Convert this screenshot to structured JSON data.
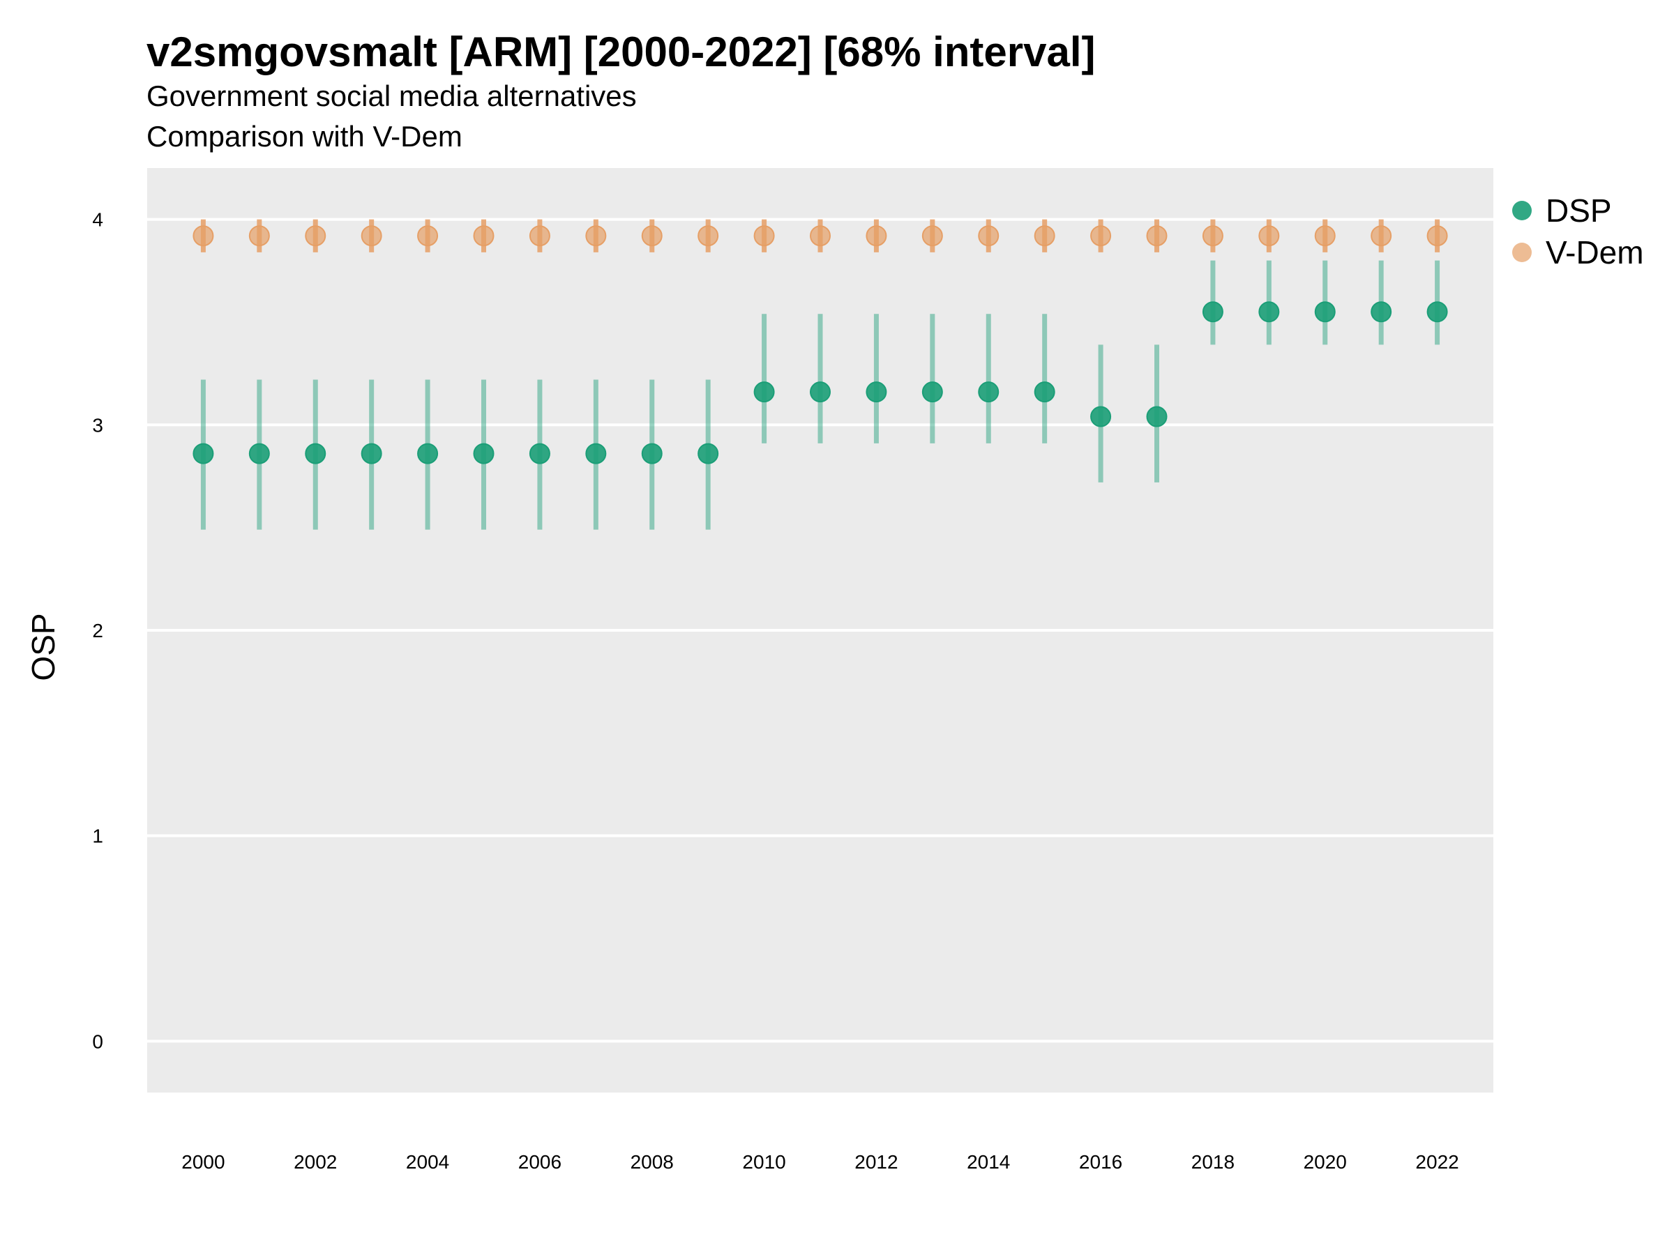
{
  "chart_data": {
    "type": "scatter",
    "title": "v2smgovsmalt [ARM] [2000-2022] [68% interval]",
    "subtitle": "Government social media alternatives",
    "subtitle2": "Comparison with V-Dem",
    "xlabel": "",
    "ylabel": "OSP",
    "ylim": [
      -0.25,
      4.25
    ],
    "yticks": [
      0,
      1,
      2,
      3,
      4
    ],
    "xticks": [
      2000,
      2002,
      2004,
      2006,
      2008,
      2010,
      2012,
      2014,
      2016,
      2018,
      2020,
      2022
    ],
    "xlim": [
      1999,
      2023
    ],
    "grid": true,
    "legend_position": "right",
    "series": [
      {
        "name": "DSP",
        "color": "#1b9e77",
        "x": [
          2000,
          2001,
          2002,
          2003,
          2004,
          2005,
          2006,
          2007,
          2008,
          2009,
          2010,
          2011,
          2012,
          2013,
          2014,
          2015,
          2016,
          2017,
          2018,
          2019,
          2020,
          2021,
          2022
        ],
        "y": [
          2.86,
          2.86,
          2.86,
          2.86,
          2.86,
          2.86,
          2.86,
          2.86,
          2.86,
          2.86,
          3.16,
          3.16,
          3.16,
          3.16,
          3.16,
          3.16,
          3.04,
          3.04,
          3.55,
          3.55,
          3.55,
          3.55,
          3.55
        ],
        "lower": [
          2.49,
          2.49,
          2.49,
          2.49,
          2.49,
          2.49,
          2.49,
          2.49,
          2.49,
          2.49,
          2.91,
          2.91,
          2.91,
          2.91,
          2.91,
          2.91,
          2.72,
          2.72,
          3.39,
          3.39,
          3.39,
          3.39,
          3.39
        ],
        "upper": [
          3.22,
          3.22,
          3.22,
          3.22,
          3.22,
          3.22,
          3.22,
          3.22,
          3.22,
          3.22,
          3.54,
          3.54,
          3.54,
          3.54,
          3.54,
          3.54,
          3.39,
          3.39,
          3.8,
          3.8,
          3.8,
          3.8,
          3.8
        ]
      },
      {
        "name": "V-Dem",
        "color": "#e69f66",
        "x": [
          2000,
          2001,
          2002,
          2003,
          2004,
          2005,
          2006,
          2007,
          2008,
          2009,
          2010,
          2011,
          2012,
          2013,
          2014,
          2015,
          2016,
          2017,
          2018,
          2019,
          2020,
          2021,
          2022
        ],
        "y": [
          3.92,
          3.92,
          3.92,
          3.92,
          3.92,
          3.92,
          3.92,
          3.92,
          3.92,
          3.92,
          3.92,
          3.92,
          3.92,
          3.92,
          3.92,
          3.92,
          3.92,
          3.92,
          3.92,
          3.92,
          3.92,
          3.92,
          3.92
        ],
        "lower": [
          3.84,
          3.84,
          3.84,
          3.84,
          3.84,
          3.84,
          3.84,
          3.84,
          3.84,
          3.84,
          3.84,
          3.84,
          3.84,
          3.84,
          3.84,
          3.84,
          3.84,
          3.84,
          3.84,
          3.84,
          3.84,
          3.84,
          3.84
        ],
        "upper": [
          4.0,
          4.0,
          4.0,
          4.0,
          4.0,
          4.0,
          4.0,
          4.0,
          4.0,
          4.0,
          4.0,
          4.0,
          4.0,
          4.0,
          4.0,
          4.0,
          4.0,
          4.0,
          4.0,
          4.0,
          4.0,
          4.0,
          4.0
        ]
      }
    ]
  }
}
